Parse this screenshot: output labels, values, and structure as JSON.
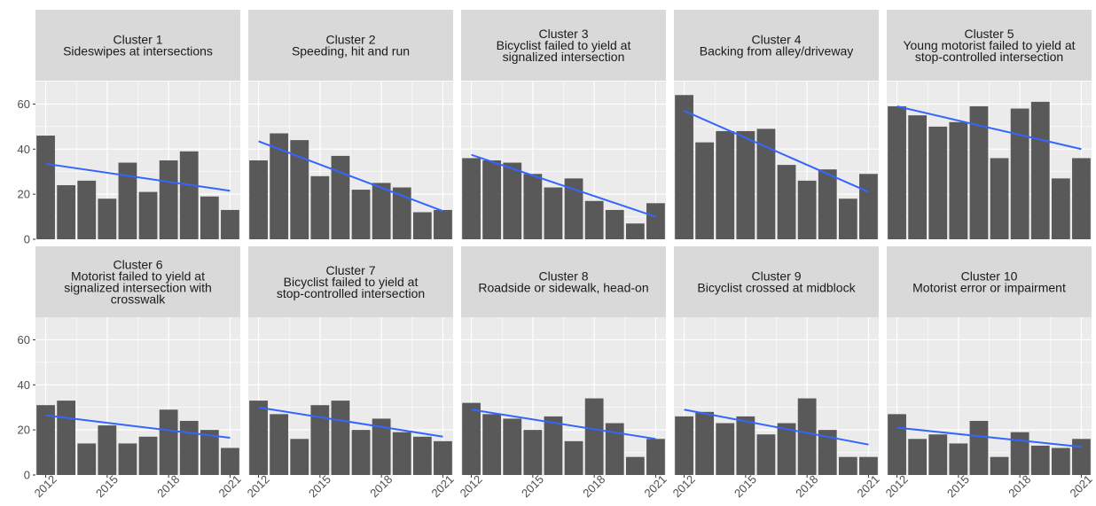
{
  "chart_data": {
    "type": "bar",
    "facet_layout": "2 rows x 5 columns",
    "x": [
      2012,
      2013,
      2014,
      2015,
      2016,
      2017,
      2018,
      2019,
      2020,
      2021
    ],
    "x_ticks": [
      "2012",
      "2015",
      "2018",
      "2021"
    ],
    "y_ticks": [
      "0",
      "20",
      "40",
      "60"
    ],
    "ylim": [
      0,
      70
    ],
    "grid": true,
    "trend_line": "linear fit",
    "colors": {
      "bar": "#595959",
      "trend": "#3366ff",
      "panel_bg": "#ebebeb",
      "strip_bg": "#d9d9d9",
      "grid": "#ffffff"
    },
    "panels": [
      {
        "title": [
          "Cluster 1",
          "Sideswipes at intersections"
        ],
        "values": [
          46,
          24,
          26,
          18,
          34,
          21,
          35,
          39,
          19,
          13
        ],
        "trend": [
          33.5,
          21.5
        ]
      },
      {
        "title": [
          "Cluster 2",
          "Speeding, hit and run"
        ],
        "values": [
          35,
          47,
          44,
          28,
          37,
          22,
          25,
          23,
          12,
          13
        ],
        "trend": [
          43.5,
          12.5
        ]
      },
      {
        "title": [
          "Cluster 3",
          "Bicyclist failed to yield at",
          "signalized intersection"
        ],
        "values": [
          36,
          35,
          34,
          29,
          23,
          27,
          17,
          13,
          7,
          16
        ],
        "trend": [
          37.5,
          10
        ]
      },
      {
        "title": [
          "Cluster 4",
          "Backing from alley/driveway"
        ],
        "values": [
          64,
          43,
          48,
          48,
          49,
          33,
          26,
          31,
          18,
          29
        ],
        "trend": [
          57,
          21
        ]
      },
      {
        "title": [
          "Cluster 5",
          "Young motorist failed to yield at",
          "stop-controlled intersection"
        ],
        "values": [
          59,
          55,
          50,
          52,
          59,
          36,
          58,
          61,
          27,
          36
        ],
        "trend": [
          59,
          40
        ]
      },
      {
        "title": [
          "Cluster 6",
          "Motorist failed to yield at",
          "signalized intersection with",
          "crosswalk"
        ],
        "values": [
          31,
          33,
          14,
          22,
          14,
          17,
          29,
          24,
          20,
          12
        ],
        "trend": [
          26.5,
          16.5
        ]
      },
      {
        "title": [
          "Cluster 7",
          "Bicyclist failed to yield at",
          "stop-controlled intersection"
        ],
        "values": [
          33,
          27,
          16,
          31,
          33,
          20,
          25,
          19,
          17,
          15
        ],
        "trend": [
          30,
          17
        ]
      },
      {
        "title": [
          "Cluster 8",
          "Roadside or sidewalk, head-on"
        ],
        "values": [
          32,
          27,
          25,
          20,
          26,
          15,
          34,
          23,
          8,
          16
        ],
        "trend": [
          29,
          16
        ]
      },
      {
        "title": [
          "Cluster 9",
          "Bicyclist crossed at midblock"
        ],
        "values": [
          26,
          28,
          23,
          26,
          18,
          23,
          34,
          20,
          8,
          8
        ],
        "trend": [
          29,
          13.5
        ]
      },
      {
        "title": [
          "Cluster 10",
          "Motorist error or impairment"
        ],
        "values": [
          27,
          16,
          18,
          14,
          24,
          8,
          19,
          13,
          12,
          16
        ],
        "trend": [
          21,
          12.5
        ]
      }
    ]
  }
}
